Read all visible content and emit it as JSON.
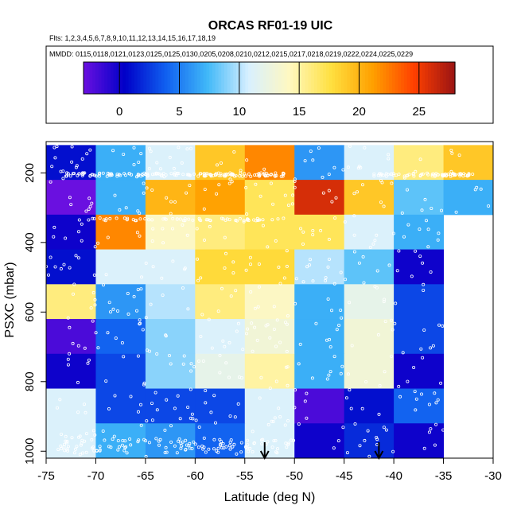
{
  "header": {
    "title": "ORCAS RF01-19 UIC",
    "flights": "Flts: 1,2,3,4,5,6,7,8,9,10,11,12,13,14,15,16,17,18,19",
    "dates": "MMDD: 0115,0118,0121,0123,0125,0125,0130,0205,0208,0210,0212,0215,0217,0218,0219,0222,0224,0225,0229"
  },
  "chart_data": {
    "type": "heatmap",
    "title": "ORCAS RF01-19 UIC",
    "xlabel": "Latitude (deg N)",
    "ylabel": "PSXC (mbar)",
    "xlim": [
      -75,
      -30
    ],
    "ylim": [
      1020,
      110
    ],
    "x_ticks": [
      -75,
      -70,
      -65,
      -60,
      -55,
      -50,
      -45,
      -40,
      -35,
      -30
    ],
    "y_ticks": [
      200,
      400,
      600,
      800,
      1000
    ],
    "lat_edges": [
      -75,
      -70,
      -65,
      -60,
      -55,
      -50,
      -45,
      -40,
      -35,
      -30
    ],
    "p_edges": [
      120,
      220,
      320,
      420,
      520,
      620,
      720,
      820,
      920,
      1020
    ],
    "values": [
      [
        1,
        7,
        11,
        19,
        22,
        6,
        11,
        16,
        19
      ],
      [
        -3,
        7,
        20,
        21,
        17,
        26,
        19,
        8,
        7
      ],
      [
        0,
        22,
        14,
        16,
        17,
        17,
        11,
        7,
        null
      ],
      [
        1,
        11,
        11,
        18,
        18,
        10,
        8,
        0,
        null
      ],
      [
        16,
        6,
        10,
        16,
        14,
        7,
        12,
        3,
        null
      ],
      [
        -2,
        4,
        9,
        11,
        13,
        7,
        13,
        3,
        null
      ],
      [
        0,
        3,
        9,
        12,
        15,
        7,
        13,
        0,
        null
      ],
      [
        11,
        3,
        3,
        3,
        11,
        -2,
        1,
        4,
        null
      ],
      [
        11,
        7,
        6,
        4,
        11,
        0,
        2,
        0,
        null
      ]
    ],
    "colorbar": {
      "range": [
        -3,
        28
      ],
      "ticks": [
        0,
        5,
        10,
        15,
        20,
        25
      ],
      "colors": [
        "#6a10e0",
        "#0000c8",
        "#1060f0",
        "#40b8f8",
        "#d8f0ff",
        "#fff8c0",
        "#ffe040",
        "#ffa000",
        "#ff4000",
        "#9a1414"
      ]
    },
    "arrows": [
      -53,
      -41.5
    ]
  }
}
